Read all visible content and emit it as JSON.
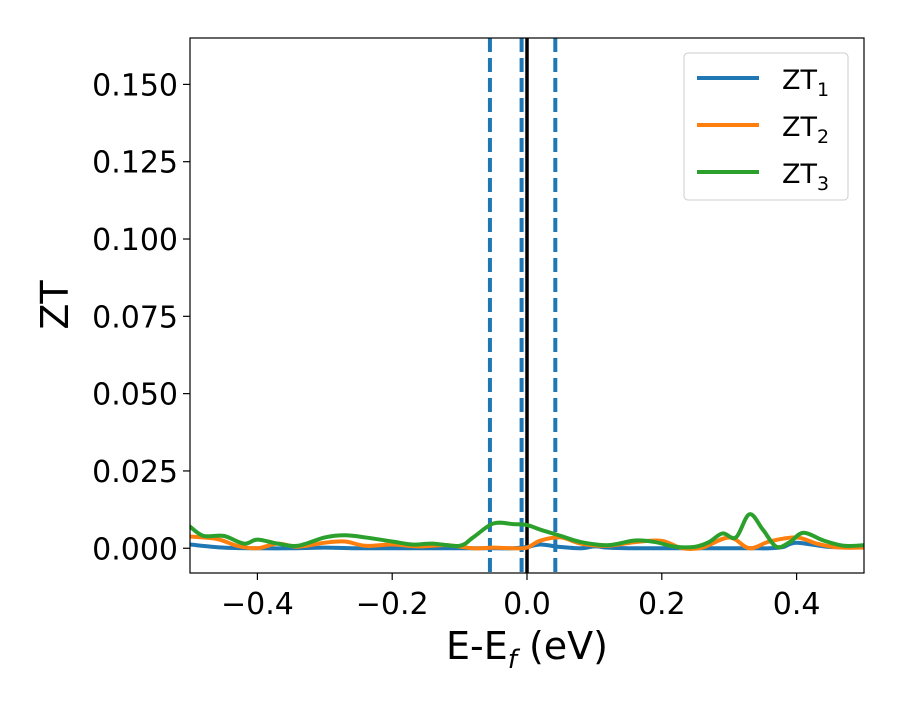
{
  "chart_data": {
    "type": "line",
    "xlabel": "E-E",
    "xlabel_sub": "f",
    "xlabel_unit": " (eV)",
    "ylabel": "ZT",
    "xlim": [
      -0.5,
      0.5
    ],
    "ylim": [
      -0.008,
      0.165
    ],
    "xticks": [
      -0.4,
      -0.2,
      0.0,
      0.2,
      0.4
    ],
    "xtick_labels": [
      "−0.4",
      "−0.2",
      "0.0",
      "0.2",
      "0.4"
    ],
    "yticks": [
      0.0,
      0.025,
      0.05,
      0.075,
      0.1,
      0.125,
      0.15
    ],
    "ytick_labels": [
      "0.000",
      "0.025",
      "0.050",
      "0.075",
      "0.100",
      "0.125",
      "0.150"
    ],
    "grid": false,
    "legend_position": "top-right",
    "vertical_lines": [
      {
        "x": -0.055,
        "style": "dashed",
        "color": "#1f77b4"
      },
      {
        "x": -0.008,
        "style": "dashed",
        "color": "#1f77b4"
      },
      {
        "x": 0.0,
        "style": "solid",
        "color": "#000000"
      },
      {
        "x": 0.042,
        "style": "dashed",
        "color": "#1f77b4"
      }
    ],
    "series": [
      {
        "name": "ZT",
        "name_sub": "1",
        "color": "#1f77b4",
        "x": [
          -0.5,
          -0.45,
          -0.4,
          -0.35,
          -0.3,
          -0.25,
          -0.2,
          -0.15,
          -0.1,
          -0.05,
          -0.02,
          0.0,
          0.02,
          0.05,
          0.08,
          0.1,
          0.12,
          0.15,
          0.2,
          0.25,
          0.3,
          0.33,
          0.36,
          0.38,
          0.4,
          0.45,
          0.5
        ],
        "y": [
          0.0012,
          0.0002,
          0.0,
          0.0,
          0.0002,
          0.0,
          0.0,
          0.0,
          0.0,
          0.0,
          0.0,
          0.0004,
          0.0012,
          0.0004,
          0.0,
          0.0006,
          0.0002,
          0.0,
          0.0,
          0.0,
          0.0,
          0.0,
          0.0,
          0.0004,
          0.0018,
          0.0004,
          0.0006
        ]
      },
      {
        "name": "ZT",
        "name_sub": "2",
        "color": "#ff7f0e",
        "x": [
          -0.5,
          -0.46,
          -0.43,
          -0.4,
          -0.37,
          -0.34,
          -0.3,
          -0.27,
          -0.24,
          -0.2,
          -0.16,
          -0.12,
          -0.08,
          -0.05,
          -0.02,
          0.0,
          0.02,
          0.05,
          0.08,
          0.12,
          0.16,
          0.2,
          0.23,
          0.26,
          0.3,
          0.33,
          0.36,
          0.4,
          0.43,
          0.46,
          0.5
        ],
        "y": [
          0.0038,
          0.003,
          0.0008,
          0.0,
          0.0015,
          0.0005,
          0.0018,
          0.0022,
          0.0008,
          0.0012,
          0.0006,
          0.001,
          0.0,
          0.0002,
          0.0,
          0.0002,
          0.0025,
          0.0035,
          0.0015,
          0.0008,
          0.002,
          0.0024,
          0.0,
          0.0002,
          0.0035,
          0.0,
          0.0022,
          0.0035,
          0.0015,
          0.0003,
          0.0002
        ]
      },
      {
        "name": "ZT",
        "name_sub": "3",
        "color": "#2ca02c",
        "x": [
          -0.5,
          -0.48,
          -0.45,
          -0.42,
          -0.4,
          -0.37,
          -0.34,
          -0.3,
          -0.27,
          -0.24,
          -0.2,
          -0.17,
          -0.14,
          -0.1,
          -0.08,
          -0.05,
          -0.02,
          0.0,
          0.02,
          0.05,
          0.08,
          0.12,
          0.16,
          0.19,
          0.22,
          0.25,
          0.27,
          0.29,
          0.31,
          0.33,
          0.35,
          0.37,
          0.39,
          0.41,
          0.44,
          0.47,
          0.5
        ],
        "y": [
          0.007,
          0.004,
          0.004,
          0.0015,
          0.0028,
          0.0015,
          0.0008,
          0.0035,
          0.0042,
          0.0035,
          0.0022,
          0.0012,
          0.0015,
          0.0008,
          0.0035,
          0.008,
          0.0078,
          0.0075,
          0.006,
          0.004,
          0.002,
          0.001,
          0.0025,
          0.002,
          0.0005,
          0.0005,
          0.002,
          0.0048,
          0.0035,
          0.011,
          0.006,
          0.0005,
          0.002,
          0.005,
          0.0025,
          0.0008,
          0.001
        ]
      }
    ]
  }
}
